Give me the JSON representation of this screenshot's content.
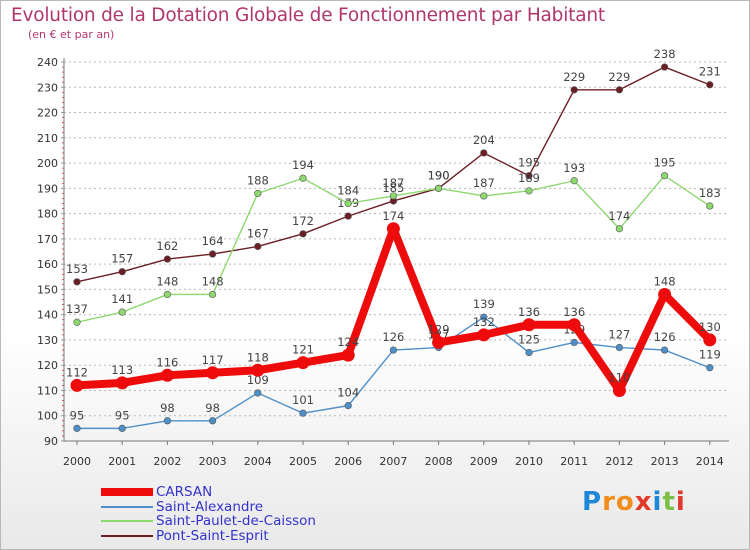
{
  "title": "Evolution de la Dotation Globale de Fonctionnement par Habitant",
  "subtitle": "(en € et par an)",
  "colors": {
    "title": "#b0366e",
    "grid": "#b9b9b9",
    "legend_text": "#3333cc"
  },
  "chart_data": {
    "type": "line",
    "title": "Evolution de la Dotation Globale de Fonctionnement par Habitant",
    "ylabel": "(en € et par an)",
    "xlabel": "",
    "ylim": [
      90,
      240
    ],
    "yticks": [
      "90",
      "100",
      "110",
      "120",
      "130",
      "140",
      "150",
      "160",
      "170",
      "180",
      "190",
      "200",
      "210",
      "220",
      "230",
      "240"
    ],
    "categories": [
      "2000",
      "2001",
      "2002",
      "2003",
      "2004",
      "2005",
      "2006",
      "2007",
      "2008",
      "2009",
      "2010",
      "2011",
      "2012",
      "2013",
      "2014"
    ],
    "legend_position": "bottom-left",
    "grid": true,
    "series": [
      {
        "name": "Pont-Saint-Esprit",
        "color": "#6b1f25",
        "values": [
          153,
          157,
          162,
          164,
          167,
          172,
          179,
          185,
          190,
          204,
          195,
          229,
          229,
          238,
          231
        ]
      },
      {
        "name": "Saint-Paulet-de-Caisson",
        "color": "#8ed870",
        "values": [
          137,
          141,
          148,
          148,
          188,
          194,
          184,
          187,
          190,
          187,
          189,
          193,
          174,
          195,
          183
        ]
      },
      {
        "name": "Saint-Alexandre",
        "color": "#4f8fc8",
        "values": [
          95,
          95,
          98,
          98,
          109,
          101,
          104,
          126,
          127,
          139,
          125,
          129,
          127,
          126,
          119
        ]
      },
      {
        "name": "CARSAN",
        "color": "#ee0b0b",
        "values": [
          112,
          113,
          116,
          117,
          118,
          121,
          124,
          174,
          129,
          132,
          136,
          136,
          110,
          148,
          130
        ]
      }
    ]
  },
  "legend": {
    "items": [
      {
        "label": "CARSAN",
        "color": "#ee0b0b"
      },
      {
        "label": "Saint-Alexandre",
        "color": "#4f8fc8"
      },
      {
        "label": "Saint-Paulet-de-Caisson",
        "color": "#8ed870"
      },
      {
        "label": "Pont-Saint-Esprit",
        "color": "#6b1f25"
      }
    ]
  },
  "logo": {
    "text": "Proxiti",
    "letters": [
      {
        "ch": "P",
        "color": "#1e88d8"
      },
      {
        "ch": "r",
        "color": "#f28c1a"
      },
      {
        "ch": "o",
        "color": "#f28c1a"
      },
      {
        "ch": "x",
        "color": "#e23a2a"
      },
      {
        "ch": "i",
        "color": "#1e88d8"
      },
      {
        "ch": "t",
        "color": "#7cc04a"
      },
      {
        "ch": "i",
        "color": "#e23a2a"
      }
    ]
  }
}
